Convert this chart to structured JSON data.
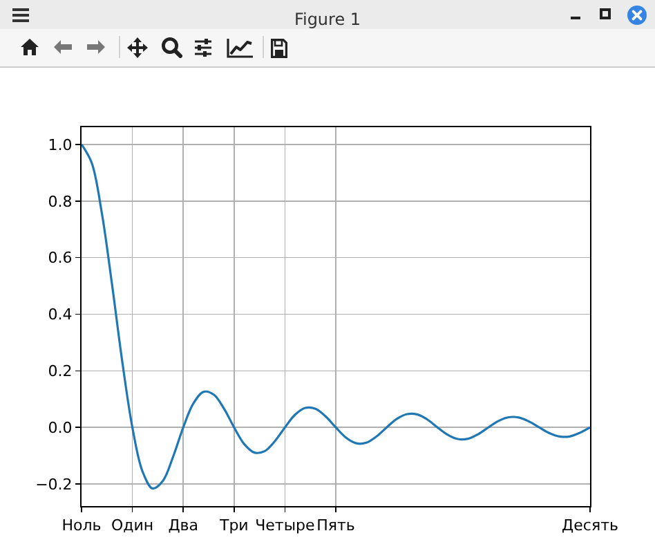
{
  "chart_data": {
    "type": "line",
    "title": "Figure 1",
    "categories": [
      "Ноль",
      null,
      null,
      null,
      null,
      "Один",
      null,
      null,
      null,
      null,
      "Два",
      null,
      null,
      null,
      null,
      "Три",
      null,
      null,
      null,
      null,
      "Четыре",
      null,
      null,
      null,
      null,
      "Пять",
      null,
      null,
      null,
      null,
      null,
      null,
      null,
      null,
      null,
      null,
      null,
      null,
      null,
      null,
      null,
      null,
      null,
      null,
      null,
      null,
      null,
      null,
      null,
      null,
      "Десять"
    ],
    "series": [
      {
        "color": "#1f77b4",
        "values": [
          1,
          0.935,
          0.757,
          0.505,
          0.234,
          0,
          -0.156,
          -0.216,
          -0.189,
          -0.104,
          0,
          0.085,
          0.126,
          0.116,
          0.067,
          0,
          -0.059,
          -0.089,
          -0.084,
          -0.049,
          0,
          0.045,
          0.069,
          0.066,
          0.039,
          0,
          -0.036,
          -0.056,
          -0.054,
          -0.032,
          0,
          0.03,
          0.047,
          0.046,
          0.028,
          0,
          -0.026,
          -0.041,
          -0.04,
          -0.024,
          0,
          0.023,
          0.036,
          0.035,
          0.021,
          0,
          -0.02,
          -0.032,
          -0.032,
          -0.019,
          0
        ]
      }
    ],
    "ylim": [
      -0.278,
      1.061
    ],
    "yticks": [
      {
        "value": -0.2,
        "label": "−0.2"
      },
      {
        "value": 0,
        "label": "0.0"
      },
      0.2,
      0.4,
      0.6,
      0.8,
      {
        "value": 1,
        "label": "1.0"
      }
    ],
    "grid": true,
    "marker": "none",
    "line_style": "solid"
  }
}
